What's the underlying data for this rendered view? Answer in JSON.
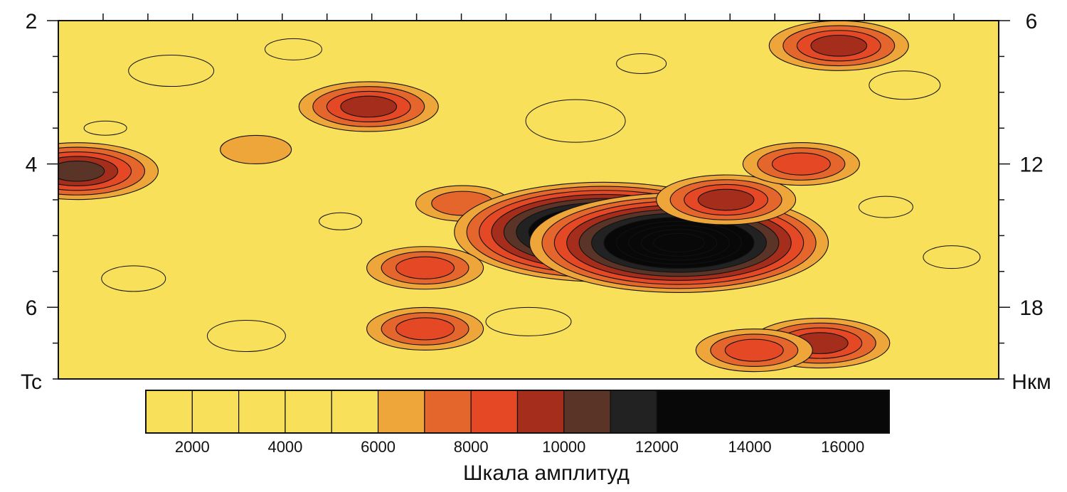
{
  "chart_data": {
    "type": "heatmap",
    "title": "",
    "left_axis": {
      "unit_label": "Tc",
      "ticks": [
        2,
        4,
        6
      ],
      "range": [
        2,
        7
      ]
    },
    "right_axis": {
      "unit_label": "Нкм",
      "ticks": [
        6,
        12,
        18
      ],
      "range": [
        6,
        21
      ]
    },
    "colorbar": {
      "label": "Шкала амплитуд",
      "tick_labels": [
        "2000",
        "4000",
        "6000",
        "8000",
        "10000",
        "12000",
        "14000",
        "16000"
      ],
      "tick_values": [
        2000,
        4000,
        6000,
        8000,
        10000,
        12000,
        14000,
        16000
      ],
      "range": [
        1000,
        17000
      ],
      "bins": [
        {
          "from": 1000,
          "to": 2000,
          "color": "#f8e05a"
        },
        {
          "from": 2000,
          "to": 3000,
          "color": "#f8e05a"
        },
        {
          "from": 3000,
          "to": 4000,
          "color": "#f8e05a"
        },
        {
          "from": 4000,
          "to": 5000,
          "color": "#f8e05a"
        },
        {
          "from": 5000,
          "to": 6000,
          "color": "#f8e05a"
        },
        {
          "from": 6000,
          "to": 7000,
          "color": "#eea53a"
        },
        {
          "from": 7000,
          "to": 8000,
          "color": "#e5662c"
        },
        {
          "from": 8000,
          "to": 9000,
          "color": "#e44825"
        },
        {
          "from": 9000,
          "to": 10000,
          "color": "#a52d1c"
        },
        {
          "from": 10000,
          "to": 11000,
          "color": "#5a3426"
        },
        {
          "from": 11000,
          "to": 12000,
          "color": "#222222"
        },
        {
          "from": 12000,
          "to": 17000,
          "color": "#080808"
        }
      ]
    },
    "background_color": "#f8e05a",
    "anomalies": [
      {
        "x": 0.83,
        "t": 2.35,
        "peak": 9000
      },
      {
        "x": 0.33,
        "t": 3.2,
        "peak": 9000
      },
      {
        "x": 0.02,
        "t": 4.1,
        "peak": 10000
      },
      {
        "x": 0.21,
        "t": 3.8,
        "peak": 6500
      },
      {
        "x": 0.43,
        "t": 4.55,
        "peak": 7500
      },
      {
        "x": 0.58,
        "t": 4.95,
        "peak": 16000
      },
      {
        "x": 0.66,
        "t": 5.1,
        "peak": 16000
      },
      {
        "x": 0.71,
        "t": 4.5,
        "peak": 9500
      },
      {
        "x": 0.79,
        "t": 4.0,
        "peak": 8500
      },
      {
        "x": 0.39,
        "t": 5.45,
        "peak": 8000
      },
      {
        "x": 0.39,
        "t": 6.3,
        "peak": 8500
      },
      {
        "x": 0.81,
        "t": 6.5,
        "peak": 9000
      },
      {
        "x": 0.74,
        "t": 6.6,
        "peak": 8000
      }
    ]
  }
}
